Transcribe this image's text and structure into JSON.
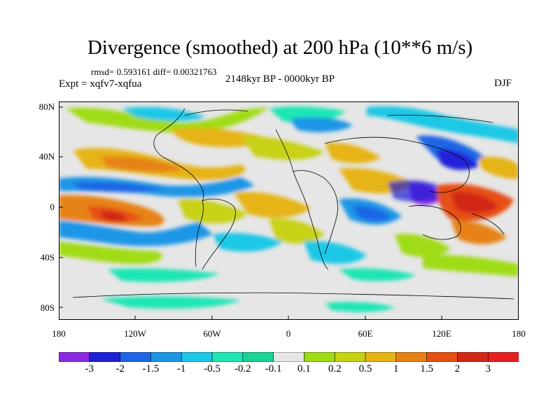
{
  "title": "Divergence (smoothed) at 200 hPa (10**6 m/s)",
  "stats": "rmsd= 0.593161 diff= 0.00321763",
  "experiment": "Expt = xqfv7-xqfua",
  "period": "2148kyr BP - 0000kyr BP",
  "season": "DJF",
  "lat_labels": [
    "80N",
    "40N",
    "0",
    "40S",
    "80S"
  ],
  "lon_labels": [
    "180",
    "120W",
    "60W",
    "0",
    "60E",
    "120E",
    "180"
  ],
  "colorbar": {
    "labels": [
      "-3",
      "-2",
      "-1.5",
      "-1",
      "-0.5",
      "-0.2",
      "-0.1",
      "0.1",
      "0.2",
      "0.5",
      "1",
      "1.5",
      "2",
      "3"
    ],
    "colors": [
      "#8a2be2",
      "#2020d8",
      "#1e66e6",
      "#1e96e6",
      "#1ec8e6",
      "#1ee6b4",
      "#19d296",
      "#e6e6e6",
      "#a0dc14",
      "#c8d214",
      "#e6b414",
      "#e68214",
      "#e65014",
      "#d22814",
      "#e61e1e"
    ]
  },
  "background_color": "#e6e6e6"
}
